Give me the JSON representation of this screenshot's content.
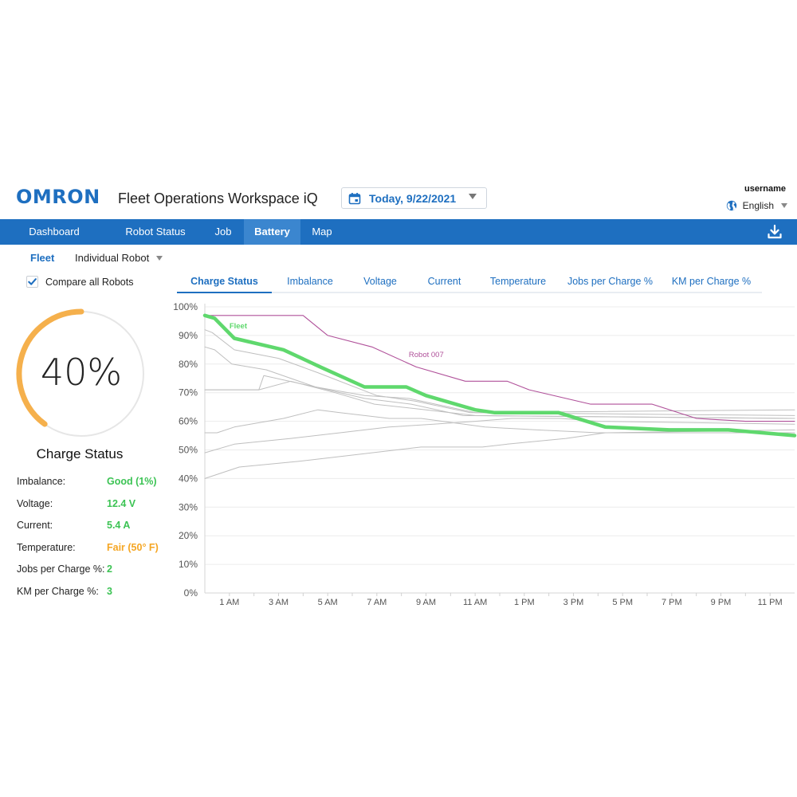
{
  "header": {
    "logo": "OMRON",
    "app_title": "Fleet Operations Workspace iQ",
    "date": "Today, 9/22/2021",
    "username": "username",
    "language": "English"
  },
  "nav": {
    "items": [
      {
        "label": "Dashboard",
        "active": false
      },
      {
        "label": "Robot Status",
        "active": false
      },
      {
        "label": "Job",
        "active": false
      },
      {
        "label": "Battery",
        "active": true
      },
      {
        "label": "Map",
        "active": false
      }
    ]
  },
  "subnav": {
    "fleet": "Fleet",
    "robot_select": "Individual Robot"
  },
  "compare": {
    "label": "Compare all Robots",
    "checked": true
  },
  "tabs": [
    {
      "label": "Charge Status",
      "active": true
    },
    {
      "label": "Imbalance",
      "active": false
    },
    {
      "label": "Voltage",
      "active": false
    },
    {
      "label": "Current",
      "active": false
    },
    {
      "label": "Temperature",
      "active": false
    },
    {
      "label": "Jobs per Charge %",
      "active": false
    },
    {
      "label": "KM per Charge %",
      "active": false
    }
  ],
  "gauge": {
    "value": "40%",
    "fraction": 0.4,
    "label": "Charge Status"
  },
  "metrics": [
    {
      "label": "Imbalance:",
      "value": "Good (1%)",
      "status": "good"
    },
    {
      "label": "Voltage:",
      "value": "12.4 V",
      "status": "good"
    },
    {
      "label": "Current:",
      "value": "5.4 A",
      "status": "good"
    },
    {
      "label": "Temperature:",
      "value": "Fair (50° F)",
      "status": "fair"
    },
    {
      "label": "Jobs per Charge %:",
      "value": "2",
      "status": "good"
    },
    {
      "label": "KM per Charge %:",
      "value": "3",
      "status": "good"
    }
  ],
  "colors": {
    "brand": "#1e6fc0",
    "nav_bg": "#1e6fc0",
    "nav_active": "#3b86cf",
    "link": "#1e6fc0",
    "good": "#3cc354",
    "fair": "#f5a623",
    "gauge_fill": "#f5b04c",
    "gauge_track": "#e6e6e6",
    "fleet_line": "#5fd86d",
    "robot_line": "#b0519a",
    "other_lines": "#bfbfbf",
    "grid": "#ececec",
    "text": "#222222"
  },
  "chart_data": {
    "type": "line",
    "y_ticks": [
      "0%",
      "10%",
      "20%",
      "30%",
      "40%",
      "50%",
      "60%",
      "70%",
      "80%",
      "90%",
      "100%"
    ],
    "ylim": [
      0,
      100
    ],
    "xlim": [
      0,
      24
    ],
    "x_ticks": [
      {
        "label": "1 AM",
        "x": 1
      },
      {
        "label": "3 AM",
        "x": 3
      },
      {
        "label": "5 AM",
        "x": 5
      },
      {
        "label": "7 AM",
        "x": 7
      },
      {
        "label": "9 AM",
        "x": 9
      },
      {
        "label": "11 AM",
        "x": 11
      },
      {
        "label": "1 PM",
        "x": 13
      },
      {
        "label": "3 PM",
        "x": 15
      },
      {
        "label": "5 PM",
        "x": 17
      },
      {
        "label": "7 PM",
        "x": 19
      },
      {
        "label": "9 PM",
        "x": 21
      },
      {
        "label": "11 PM",
        "x": 23
      }
    ],
    "grid": true,
    "series": [
      {
        "name": "Fleet",
        "role": "fleet",
        "x": [
          0,
          0.4,
          1.2,
          3.2,
          4.7,
          6.5,
          8.2,
          9.0,
          11.0,
          11.8,
          14.4,
          16.3,
          18.9,
          21.3,
          24
        ],
        "y": [
          97,
          96,
          89,
          85,
          79,
          72,
          72,
          69,
          64,
          63,
          63,
          58,
          57,
          57,
          55
        ]
      },
      {
        "name": "Robot 007",
        "role": "robot",
        "x": [
          0,
          2.4,
          4.0,
          5.0,
          6.8,
          8.6,
          10.6,
          12.3,
          13.2,
          15.7,
          18.2,
          20.0,
          22.0,
          24
        ],
        "y": [
          97,
          97,
          97,
          90,
          86,
          79,
          74,
          74,
          71,
          66,
          66,
          61,
          60,
          60
        ]
      },
      {
        "role": "other",
        "x": [
          0,
          0.3,
          1.2,
          3.0,
          4.6,
          7.0,
          8.6,
          10.8,
          24
        ],
        "y": [
          92,
          91,
          85,
          82,
          77,
          69,
          67,
          63,
          64
        ]
      },
      {
        "role": "other",
        "x": [
          0,
          0.4,
          1.1,
          2.5,
          4.5,
          6.5,
          8.4,
          10.5,
          24
        ],
        "y": [
          86,
          85,
          80,
          78,
          72,
          68,
          66,
          62,
          61
        ]
      },
      {
        "role": "other",
        "x": [
          0,
          1.6,
          2.2,
          3.5,
          5.3,
          6.9,
          9.0,
          11.0,
          24
        ],
        "y": [
          71,
          71,
          71,
          74,
          70,
          66,
          64,
          62,
          61
        ]
      },
      {
        "role": "other",
        "x": [
          0,
          2.2,
          2.4,
          4.5,
          6.5,
          8.3,
          11.0,
          24
        ],
        "y": [
          71,
          71,
          76,
          72,
          69,
          68,
          63,
          62
        ]
      },
      {
        "role": "other",
        "x": [
          0,
          0.5,
          1.2,
          3.2,
          4.6,
          5.5,
          7.5,
          8.8,
          11.4,
          13.5,
          16.0,
          24
        ],
        "y": [
          56,
          56,
          58,
          61,
          64,
          63,
          61,
          61,
          58,
          57,
          56,
          56
        ]
      },
      {
        "role": "other",
        "x": [
          0,
          1.2,
          3.5,
          5.5,
          7.5,
          9.3,
          11.0,
          12.5,
          14.5,
          16.0,
          24
        ],
        "y": [
          49,
          52,
          54,
          56,
          58,
          59,
          60,
          61,
          61,
          60,
          59
        ]
      },
      {
        "role": "other",
        "x": [
          0,
          1.4,
          3.8,
          5.8,
          7.8,
          8.8,
          11.3,
          12.3,
          14.7,
          16.3,
          24
        ],
        "y": [
          40,
          44,
          46,
          48,
          50,
          51,
          51,
          52,
          54,
          56,
          57
        ]
      }
    ]
  }
}
